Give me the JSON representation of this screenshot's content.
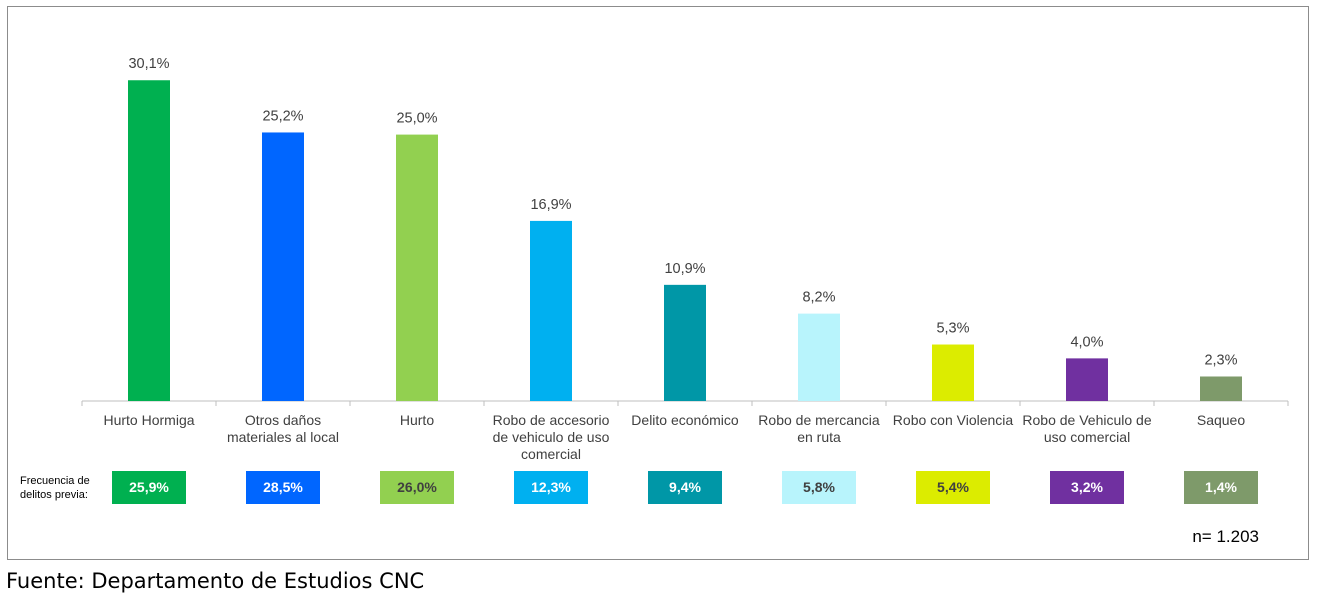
{
  "chart_data": {
    "type": "bar",
    "categories": [
      "Hurto Hormiga",
      "Otros daños materiales al local",
      "Hurto",
      "Robo de accesorio de vehiculo de uso comercial",
      "Delito económico",
      "Robo de mercancia en ruta",
      "Robo con Violencia",
      "Robo de Vehiculo de uso comercial",
      "Saqueo"
    ],
    "category_lines": [
      [
        "Hurto Hormiga"
      ],
      [
        "Otros daños",
        "materiales al local"
      ],
      [
        "Hurto"
      ],
      [
        "Robo de accesorio",
        "de vehiculo de uso",
        "comercial"
      ],
      [
        "Delito económico"
      ],
      [
        "Robo de mercancia",
        "en ruta"
      ],
      [
        "Robo con Violencia"
      ],
      [
        "Robo de Vehiculo de",
        "uso comercial"
      ],
      [
        "Saqueo"
      ]
    ],
    "values": [
      30.1,
      25.2,
      25.0,
      16.9,
      10.9,
      8.2,
      5.3,
      4.0,
      2.3
    ],
    "value_labels": [
      "30,1%",
      "25,2%",
      "25,0%",
      "16,9%",
      "10,9%",
      "8,2%",
      "5,3%",
      "4,0%",
      "2,3%"
    ],
    "colors": [
      "#00b050",
      "#0066ff",
      "#92d050",
      "#00b0f0",
      "#0097a7",
      "#b8f4fc",
      "#dcec00",
      "#7030a0",
      "#7e9a6a"
    ],
    "ylim": [
      0,
      32
    ],
    "grid": false,
    "legend": "none",
    "title": "",
    "xlabel": "",
    "ylabel": ""
  },
  "previous": {
    "label_lines": [
      "Frecuencia de",
      "delitos previa:"
    ],
    "values": [
      "25,9%",
      "28,5%",
      "26,0%",
      "12,3%",
      "9,4%",
      "5,8%",
      "5,4%",
      "3,2%",
      "1,4%"
    ],
    "text_colors": [
      "#ffffff",
      "#ffffff",
      "#404040",
      "#ffffff",
      "#ffffff",
      "#404040",
      "#404040",
      "#ffffff",
      "#ffffff"
    ]
  },
  "sample": "n= 1.203",
  "source": "Fuente: Departamento de Estudios CNC"
}
